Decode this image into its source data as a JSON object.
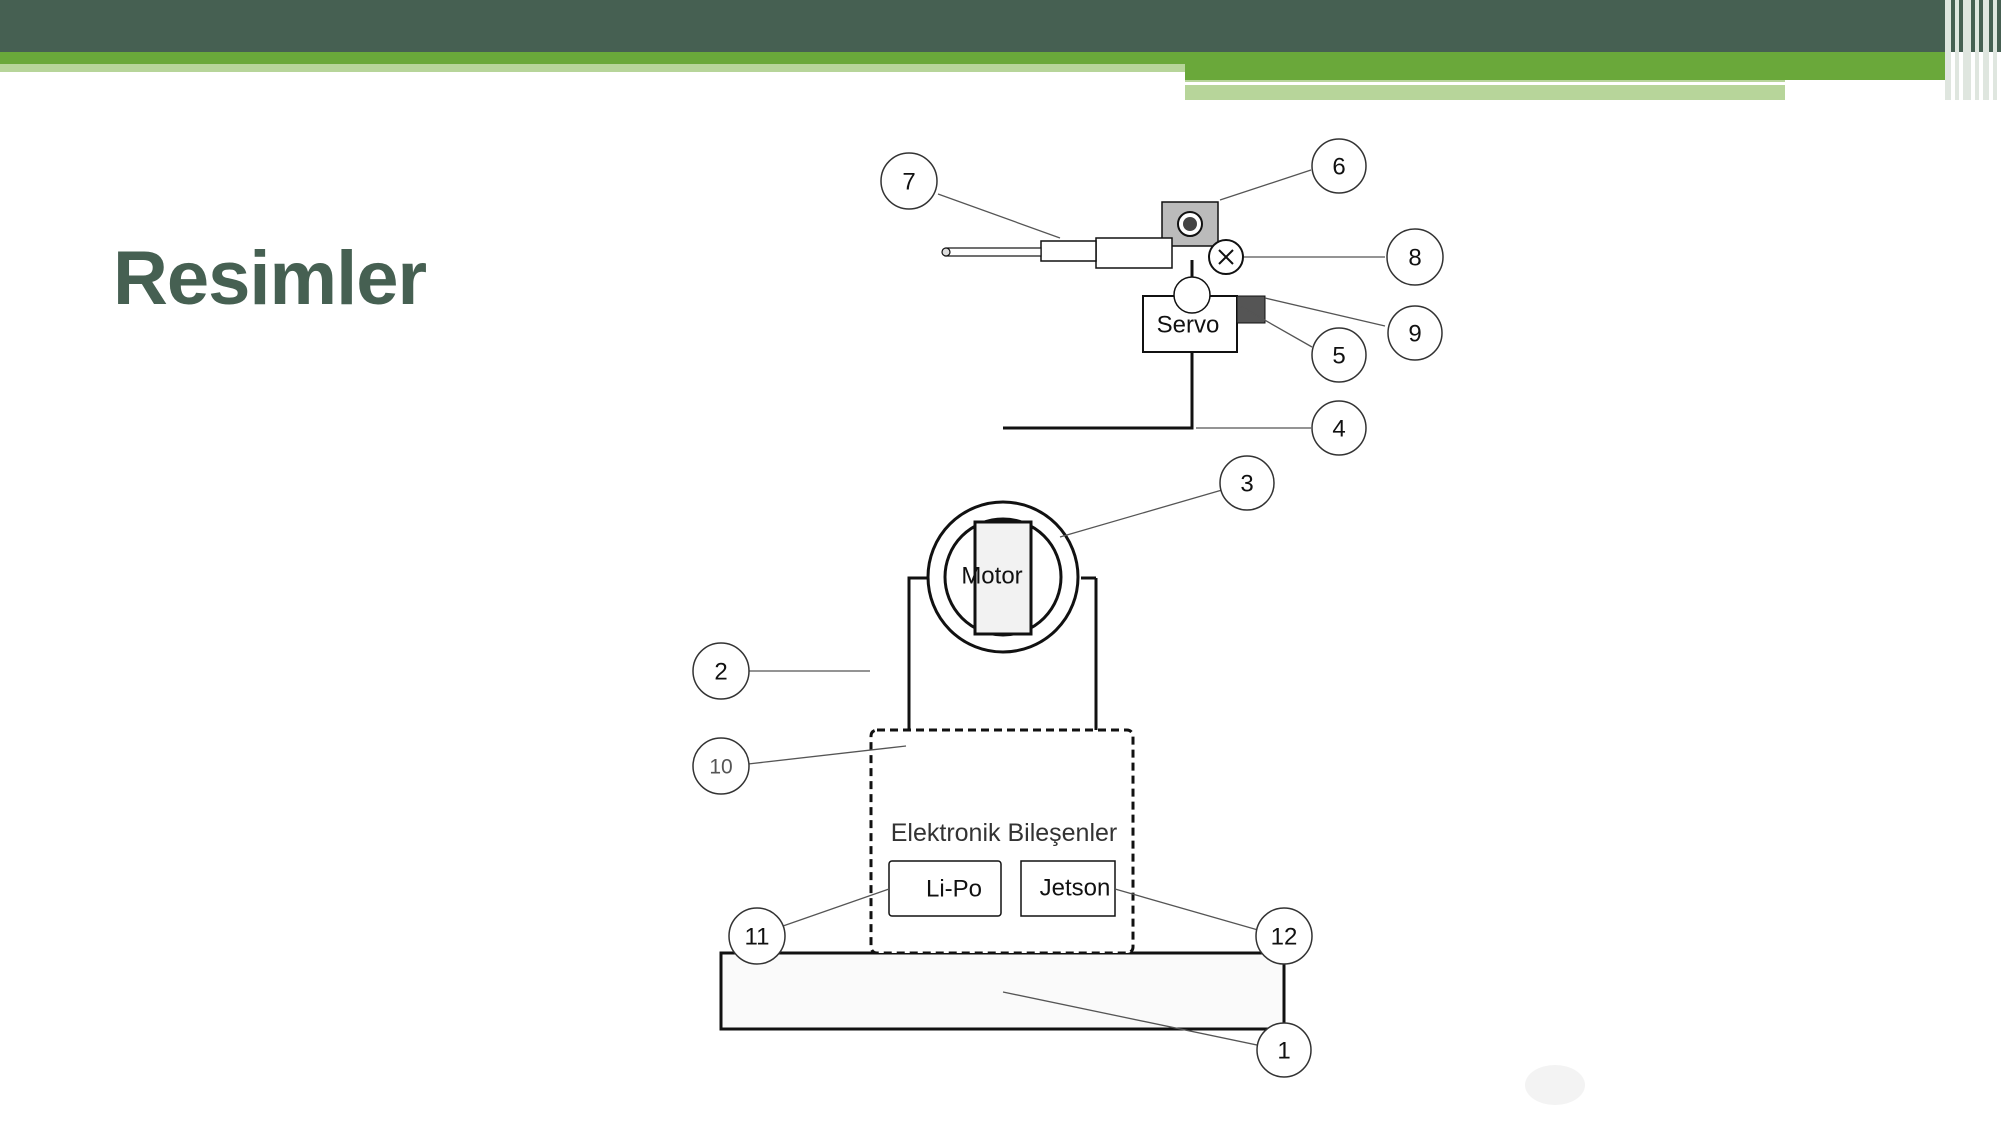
{
  "slide": {
    "title": "Resimler",
    "colors": {
      "dark": "#466052",
      "accent": "#6aa83a",
      "light": "#b7d59a"
    }
  },
  "diagram": {
    "components": {
      "servo": "Servo",
      "motor": "Motor",
      "electronics": "Elektronik Bileşenler",
      "battery": "Li-Po",
      "computer": "Jetson"
    },
    "callouts": [
      "1",
      "2",
      "3",
      "4",
      "5",
      "6",
      "7",
      "8",
      "9",
      "10",
      "11",
      "12"
    ]
  }
}
